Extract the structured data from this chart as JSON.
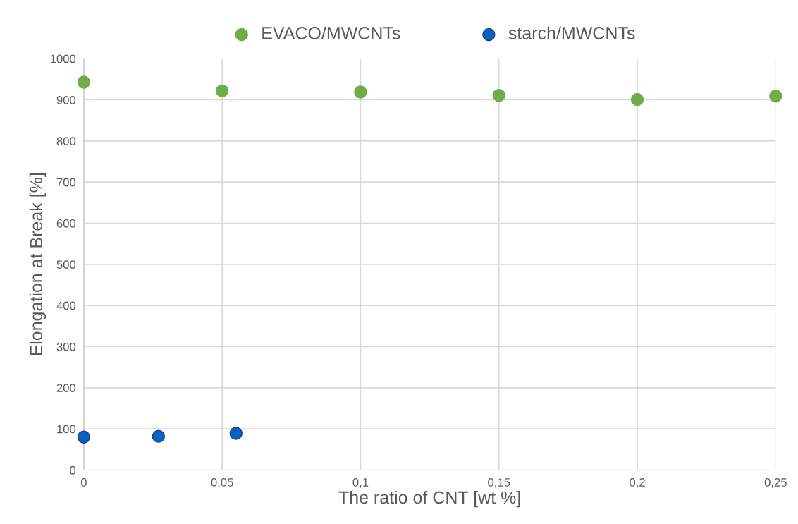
{
  "chart_data": {
    "type": "scatter",
    "xlabel": "The ratio of CNT [wt %]",
    "ylabel": "Elongation at Break [%]",
    "series": [
      {
        "name": "EVACO/MWCNTs",
        "color": "#70ad47",
        "x": [
          0,
          0.05,
          0.1,
          0.15,
          0.2,
          0.25
        ],
        "values": [
          943,
          922,
          919,
          911,
          901,
          909
        ]
      },
      {
        "name": "starch/MWCNTs",
        "color": "#0563c1",
        "x": [
          0,
          0.027,
          0.055
        ],
        "values": [
          80,
          82,
          89
        ]
      }
    ],
    "xlim": [
      0,
      0.25
    ],
    "xticks": [
      {
        "value": 0,
        "label": "0"
      },
      {
        "value": 0.05,
        "label": "0,05"
      },
      {
        "value": 0.1,
        "label": "0,1"
      },
      {
        "value": 0.15,
        "label": "0,15"
      },
      {
        "value": 0.2,
        "label": "0,2"
      },
      {
        "value": 0.25,
        "label": "0,25"
      }
    ],
    "ylim": [
      0,
      1000
    ],
    "yticks": [
      0,
      100,
      200,
      300,
      400,
      500,
      600,
      700,
      800,
      900,
      1000
    ],
    "grid": true,
    "legend": "top",
    "marker": "circle"
  }
}
